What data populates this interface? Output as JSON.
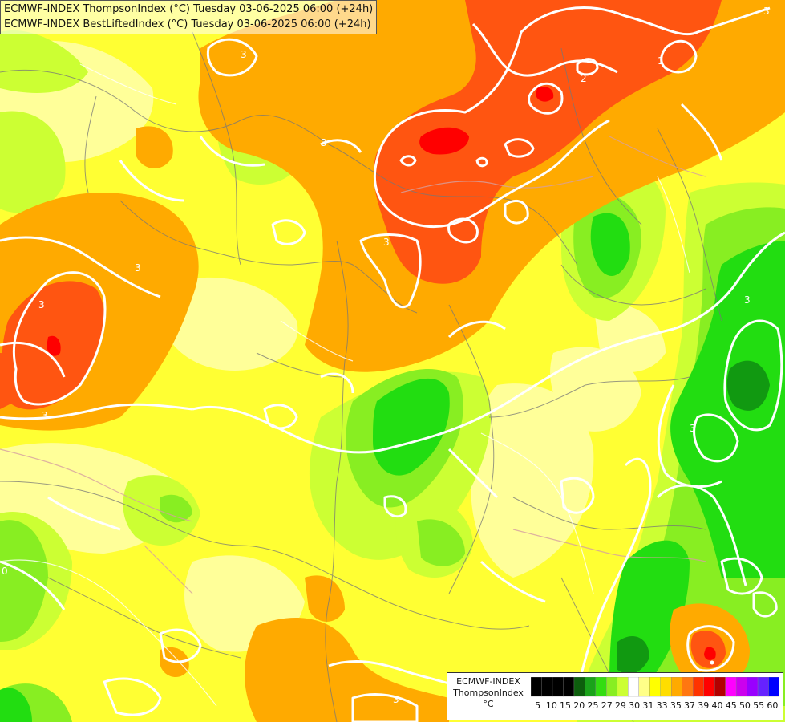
{
  "title": {
    "line1": "ECMWF-INDEX ThompsonIndex (°C) Tuesday 03-06-2025 06:00 (+24h)",
    "line2": "ECMWF-INDEX BestLiftedIndex (°C) Tuesday 03-06-2025 06:00 (+24h)"
  },
  "legend": {
    "model": "ECMWF-INDEX",
    "variable": "ThompsonIndex",
    "unit": "°C",
    "swatches": [
      "#000000",
      "#000000",
      "#000000",
      "#000000",
      "#0d5e0d",
      "#1aa31a",
      "#33dd11",
      "#88ee22",
      "#ccff33",
      "#ffffff",
      "#ffff88",
      "#ffff00",
      "#ffdd00",
      "#ffaa00",
      "#ff7711",
      "#ff3300",
      "#ff0000",
      "#b30000",
      "#ff00ff",
      "#cc00ee",
      "#9900ff",
      "#6622ff",
      "#0000ff"
    ],
    "ticks": [
      "5",
      "10",
      "15",
      "20",
      "25",
      "27",
      "29",
      "30",
      "31",
      "33",
      "35",
      "37",
      "39",
      "40",
      "45",
      "50",
      "55",
      "60"
    ]
  },
  "contour_labels": [
    "3",
    "3",
    "3",
    "3",
    "3",
    "3",
    "3",
    "2",
    "1",
    "3",
    "0",
    "3",
    "3"
  ],
  "colors": {
    "yellow": "#ffff33",
    "pale_yellow": "#ffff99",
    "orange": "#ffaa00",
    "red_orange": "#ff5511",
    "red": "#ff0000",
    "lime": "#ccff33",
    "light_green": "#88ee22",
    "green": "#22dd11",
    "dark_green": "#119911"
  }
}
